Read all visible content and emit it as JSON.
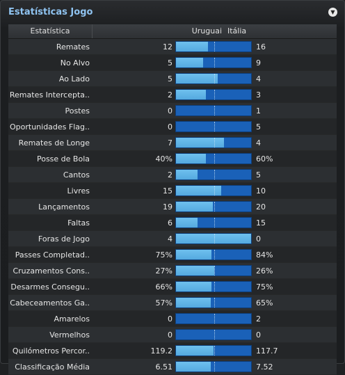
{
  "panel": {
    "title": "Estatísticas Jogo",
    "menu_icon": "chevron-down-icon"
  },
  "header": {
    "stat": "Estatística",
    "team1": "Uruguai",
    "team2": "Itália"
  },
  "colors": {
    "team1_bar": "#5ab0e6",
    "team2_bar": "#1a61b8",
    "title": "#8fc3f0"
  },
  "rows": [
    {
      "label": "Remates",
      "v1": "12",
      "v2": "16",
      "share1": 0.429
    },
    {
      "label": "No Alvo",
      "v1": "5",
      "v2": "9",
      "share1": 0.357
    },
    {
      "label": "Ao Lado",
      "v1": "5",
      "v2": "4",
      "share1": 0.556
    },
    {
      "label": "Remates Intercepta..",
      "v1": "2",
      "v2": "3",
      "share1": 0.4
    },
    {
      "label": "Postes",
      "v1": "0",
      "v2": "1",
      "share1": 0
    },
    {
      "label": "Oportunidades Flag..",
      "v1": "0",
      "v2": "5",
      "share1": 0
    },
    {
      "label": "Remates de Longe",
      "v1": "7",
      "v2": "4",
      "share1": 0.636
    },
    {
      "label": "Posse de Bola",
      "v1": "40%",
      "v2": "60%",
      "share1": 0.4
    },
    {
      "label": "Cantos",
      "v1": "2",
      "v2": "5",
      "share1": 0.286
    },
    {
      "label": "Livres",
      "v1": "15",
      "v2": "10",
      "share1": 0.6
    },
    {
      "label": "Lançamentos",
      "v1": "19",
      "v2": "20",
      "share1": 0.487
    },
    {
      "label": "Faltas",
      "v1": "6",
      "v2": "15",
      "share1": 0.286
    },
    {
      "label": "Foras de Jogo",
      "v1": "4",
      "v2": "0",
      "share1": 1
    },
    {
      "label": "Passes Completad..",
      "v1": "75%",
      "v2": "84%",
      "share1": 0.472
    },
    {
      "label": "Cruzamentos Cons..",
      "v1": "27%",
      "v2": "26%",
      "share1": 0.509
    },
    {
      "label": "Desarmes Consegu..",
      "v1": "66%",
      "v2": "75%",
      "share1": 0.468
    },
    {
      "label": "Cabeceamentos Ga..",
      "v1": "57%",
      "v2": "65%",
      "share1": 0.467
    },
    {
      "label": "Amarelos",
      "v1": "0",
      "v2": "2",
      "share1": 0
    },
    {
      "label": "Vermelhos",
      "v1": "0",
      "v2": "0",
      "share1": 0
    },
    {
      "label": "Quilómetros Percor..",
      "v1": "119.2",
      "v2": "117.7",
      "share1": 0.503
    },
    {
      "label": "Classificação Média",
      "v1": "6.51",
      "v2": "7.52",
      "share1": 0.464
    }
  ]
}
